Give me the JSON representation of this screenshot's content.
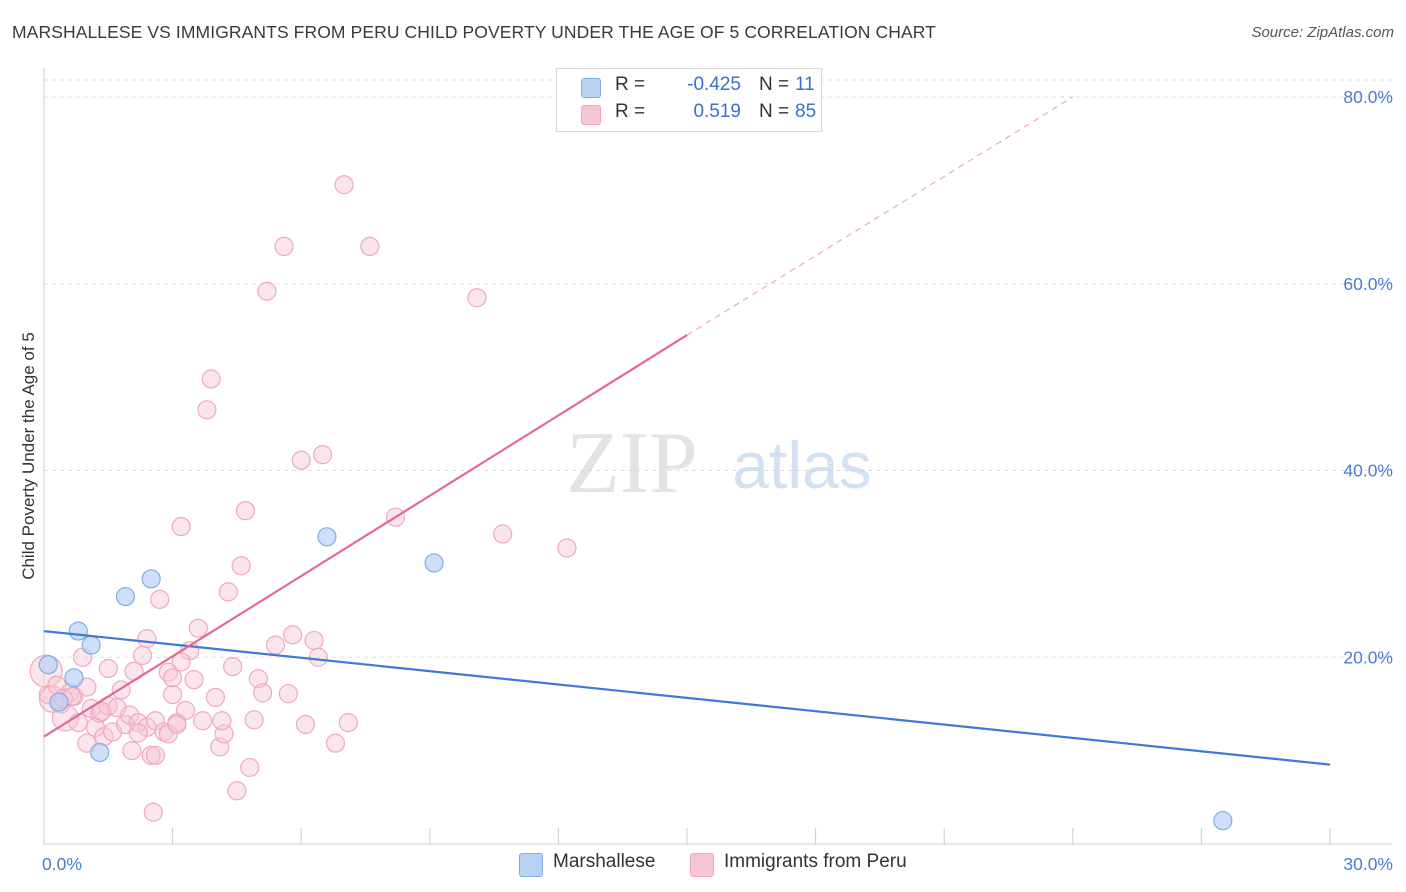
{
  "title": "MARSHALLESE VS IMMIGRANTS FROM PERU CHILD POVERTY UNDER THE AGE OF 5 CORRELATION CHART",
  "source": "Source: ZipAtlas.com",
  "watermark": {
    "zip": "ZIP",
    "atlas": "atlas"
  },
  "legend": {
    "rows": [
      {
        "r_label": "R =",
        "r_value": "-0.425",
        "n_label": "N =",
        "n_value": "11"
      },
      {
        "r_label": "R =",
        "r_value": "0.519",
        "n_label": "N =",
        "n_value": "85"
      }
    ]
  },
  "chart_data": {
    "type": "scatter",
    "title": "MARSHALLESE VS IMMIGRANTS FROM PERU CHILD POVERTY UNDER THE AGE OF 5 CORRELATION CHART",
    "xlabel": "",
    "ylabel": "Child Poverty Under the Age of 5",
    "xlim": [
      0,
      30
    ],
    "ylim": [
      0,
      80
    ],
    "x_tick_labels": [
      "0.0%",
      "30.0%"
    ],
    "y_ticks": [
      20,
      40,
      60,
      80
    ],
    "y_tick_labels": [
      "20.0%",
      "40.0%",
      "60.0%",
      "80.0%"
    ],
    "grid": true,
    "series": [
      {
        "name": "Marshallese",
        "color": "#7eaee8",
        "fill": "#b9d2f3",
        "points": [
          [
            0.1,
            19.2
          ],
          [
            0.7,
            17.8
          ],
          [
            1.1,
            21.3
          ],
          [
            0.8,
            22.8
          ],
          [
            1.9,
            26.5
          ],
          [
            2.5,
            28.4
          ],
          [
            6.6,
            32.9
          ],
          [
            9.1,
            30.1
          ],
          [
            1.3,
            9.8
          ],
          [
            0.35,
            15.2
          ],
          [
            27.5,
            2.5
          ]
        ],
        "trend": {
          "x0": 0,
          "y0": 22.8,
          "x1": 30,
          "y1": 8.5,
          "color": "#3f78d6"
        }
      },
      {
        "name": "Immigrants from Peru",
        "color": "#f0a8bf",
        "fill": "#f7c6d5",
        "points": [
          [
            0.05,
            18.5
          ],
          [
            0.1,
            16.0
          ],
          [
            0.2,
            15.5
          ],
          [
            0.3,
            17.0
          ],
          [
            0.4,
            15.0
          ],
          [
            0.5,
            13.5
          ],
          [
            0.6,
            16.2
          ],
          [
            0.7,
            15.8
          ],
          [
            0.8,
            13.0
          ],
          [
            0.9,
            20.0
          ],
          [
            1.0,
            16.8
          ],
          [
            1.1,
            14.5
          ],
          [
            1.2,
            12.5
          ],
          [
            1.3,
            14.0
          ],
          [
            1.4,
            11.5
          ],
          [
            1.5,
            14.8
          ],
          [
            1.6,
            12.0
          ],
          [
            1.7,
            14.6
          ],
          [
            1.8,
            16.5
          ],
          [
            1.9,
            12.8
          ],
          [
            2.0,
            13.8
          ],
          [
            2.1,
            18.5
          ],
          [
            2.2,
            13.0
          ],
          [
            2.3,
            20.2
          ],
          [
            2.4,
            12.5
          ],
          [
            2.5,
            9.5
          ],
          [
            2.6,
            13.2
          ],
          [
            2.7,
            26.2
          ],
          [
            2.8,
            12.0
          ],
          [
            2.9,
            18.4
          ],
          [
            3.0,
            16.0
          ],
          [
            3.1,
            13.0
          ],
          [
            3.2,
            34.0
          ],
          [
            3.3,
            14.3
          ],
          [
            3.4,
            20.7
          ],
          [
            3.5,
            17.6
          ],
          [
            3.6,
            23.1
          ],
          [
            3.7,
            13.2
          ],
          [
            3.8,
            46.5
          ],
          [
            3.9,
            49.8
          ],
          [
            4.0,
            15.7
          ],
          [
            4.1,
            10.4
          ],
          [
            4.2,
            11.8
          ],
          [
            4.3,
            27.0
          ],
          [
            4.4,
            19.0
          ],
          [
            4.5,
            5.7
          ],
          [
            4.6,
            29.8
          ],
          [
            4.7,
            35.7
          ],
          [
            4.8,
            8.2
          ],
          [
            4.9,
            13.3
          ],
          [
            5.0,
            17.7
          ],
          [
            5.1,
            16.2
          ],
          [
            5.2,
            59.2
          ],
          [
            5.4,
            21.3
          ],
          [
            5.6,
            64.0
          ],
          [
            5.7,
            16.1
          ],
          [
            5.8,
            22.4
          ],
          [
            6.0,
            41.1
          ],
          [
            6.1,
            12.8
          ],
          [
            6.3,
            21.8
          ],
          [
            6.4,
            20.0
          ],
          [
            6.5,
            41.7
          ],
          [
            6.8,
            10.8
          ],
          [
            7.1,
            13.0
          ],
          [
            7.0,
            70.6
          ],
          [
            7.6,
            64.0
          ],
          [
            8.2,
            35.0
          ],
          [
            10.1,
            58.5
          ],
          [
            10.7,
            33.2
          ],
          [
            12.2,
            31.7
          ],
          [
            1.5,
            18.8
          ],
          [
            2.4,
            22.0
          ],
          [
            3.2,
            19.5
          ],
          [
            2.6,
            9.5
          ],
          [
            1.0,
            10.8
          ],
          [
            0.45,
            15.6
          ],
          [
            0.65,
            15.8
          ],
          [
            2.9,
            11.8
          ],
          [
            2.2,
            11.9
          ],
          [
            3.1,
            12.8
          ],
          [
            1.35,
            14.2
          ],
          [
            3.0,
            17.8
          ],
          [
            4.15,
            13.2
          ],
          [
            2.55,
            3.4
          ],
          [
            2.05,
            10.0
          ]
        ],
        "trend": {
          "x0": 0,
          "y0": 11.5,
          "x1": 15,
          "y1": 54.5,
          "dash_to_x": 24,
          "dash_to_y": 80,
          "color": "#e56891"
        }
      }
    ]
  },
  "bottom_legend": [
    {
      "label": "Marshallese"
    },
    {
      "label": "Immigrants from Peru"
    }
  ]
}
